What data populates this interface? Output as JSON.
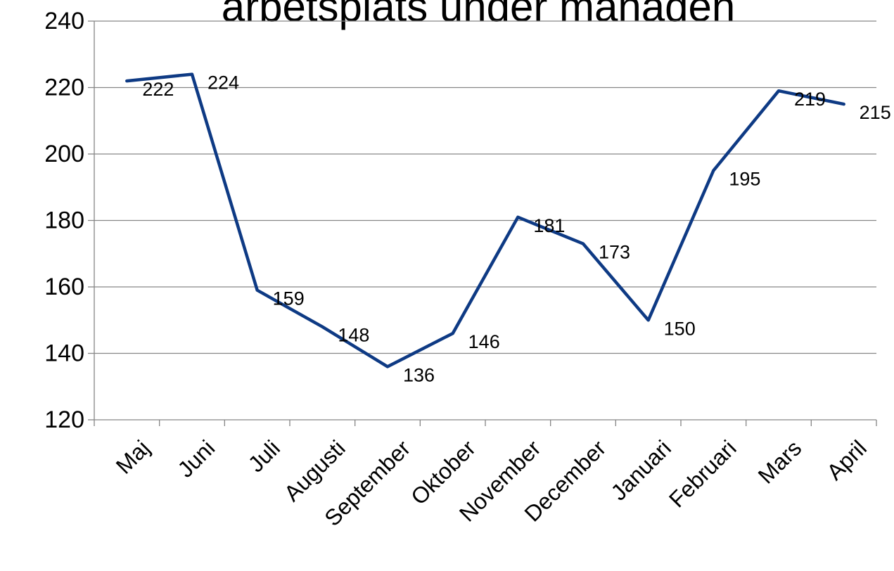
{
  "chart_data": {
    "type": "line",
    "title": "arbetsplats under månaden",
    "xlabel": "",
    "ylabel": "",
    "categories": [
      "Maj",
      "Juni",
      "Juli",
      "Augusti",
      "September",
      "Oktober",
      "November",
      "December",
      "Januari",
      "Februari",
      "Mars",
      "April"
    ],
    "series": [
      {
        "values": [
          222,
          224,
          159,
          148,
          136,
          146,
          181,
          173,
          150,
          195,
          219,
          215
        ],
        "color": "#0E3A84"
      }
    ],
    "data_labels": [
      "222",
      "224",
      "159",
      "148",
      "136",
      "146",
      "181",
      "173",
      "150",
      "195",
      "219",
      "215"
    ],
    "ylim": [
      120,
      240
    ],
    "yticks": [
      120,
      140,
      160,
      180,
      200,
      220,
      240
    ],
    "ytick_labels": [
      "120",
      "140",
      "160",
      "180",
      "200",
      "220",
      "240"
    ],
    "grid": true,
    "legend": "none",
    "colors": {
      "series": "#0E3A84",
      "grid": "#868686",
      "text": "#000000"
    }
  }
}
